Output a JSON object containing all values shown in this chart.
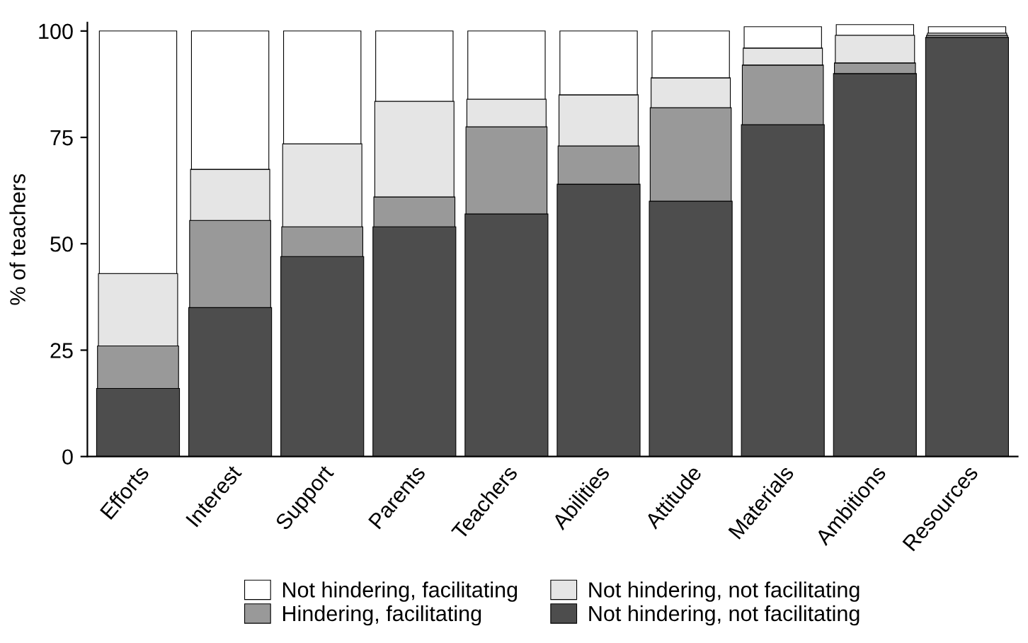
{
  "chart_data": {
    "type": "bar",
    "stacked": true,
    "ylabel": "% of teachers",
    "categories": [
      "Efforts",
      "Interest",
      "Support",
      "Parents",
      "Teachers",
      "Abilities",
      "Attitude",
      "Materials",
      "Ambitions",
      "Resources"
    ],
    "series": [
      {
        "name": "Not hindering, not facilitating",
        "color": "#4d4d4d",
        "values": [
          16,
          35,
          47,
          54,
          57,
          64,
          60,
          78,
          90,
          98.5
        ]
      },
      {
        "name": "Hindering, facilitating",
        "color": "#999999",
        "values": [
          10,
          20.5,
          7,
          7,
          20.5,
          9,
          22,
          14,
          2.5,
          0.5
        ]
      },
      {
        "name": "Not hindering, not facilitating",
        "color": "#e5e5e5",
        "values": [
          17,
          12,
          19.5,
          22.5,
          6.5,
          12,
          7,
          4,
          6.5,
          0.5
        ]
      },
      {
        "name": "Not hindering, facilitating",
        "color": "#ffffff",
        "values": [
          57,
          32.5,
          26.5,
          16.5,
          16,
          15,
          11,
          5,
          2.5,
          1.5
        ]
      }
    ],
    "ylim": [
      0,
      102
    ],
    "yticks": [
      0,
      25,
      50,
      75,
      100
    ],
    "grid": false,
    "legend": "bottom"
  }
}
